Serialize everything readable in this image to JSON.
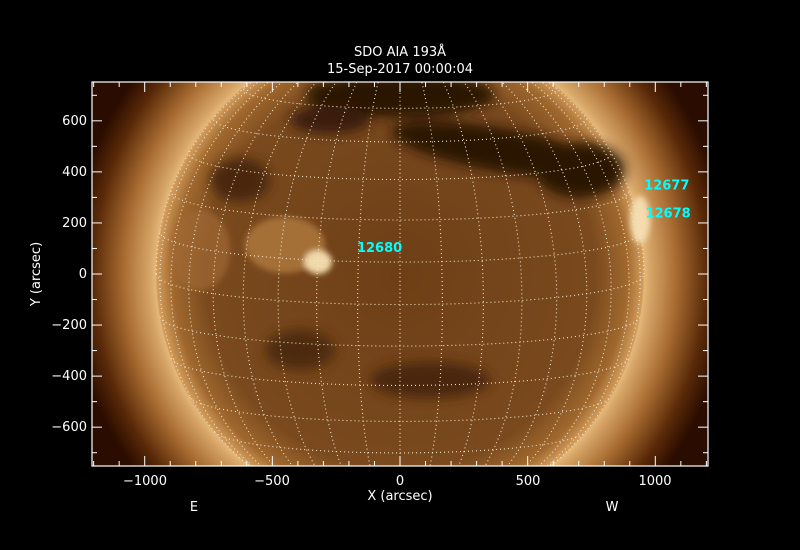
{
  "chart_data": {
    "type": "image",
    "title": "SDO AIA 193Å",
    "subtitle": "15-Sep-2017 00:00:04",
    "xlabel": "X (arcsec)",
    "ylabel": "Y (arcsec)",
    "xlim": [
      -1208,
      1208
    ],
    "ylim": [
      -752,
      752
    ],
    "xticks": [
      -1000,
      -500,
      0,
      500,
      1000
    ],
    "xtick_labels": [
      "−1000",
      "−500",
      "0",
      "500",
      "1000"
    ],
    "yticks": [
      -600,
      -400,
      -200,
      0,
      200,
      400,
      600
    ],
    "ytick_labels": [
      "−600",
      "−400",
      "−200",
      "0",
      "200",
      "400",
      "600"
    ],
    "x_minor_step": 100,
    "y_minor_step": 100,
    "solar_radius_arcsec": 955,
    "grid": "heliographic, 10° spacing, dotted",
    "colormap": "SDO AIA 193 (brown/gold)",
    "annotations": [
      {
        "text": "12680",
        "x": -80,
        "y": 105
      },
      {
        "text": "12677",
        "x": 1045,
        "y": 350
      },
      {
        "text": "12678",
        "x": 1050,
        "y": 240
      }
    ],
    "limb_labels": {
      "east": "E",
      "west": "W"
    },
    "annotation_color": "#00ffff"
  }
}
